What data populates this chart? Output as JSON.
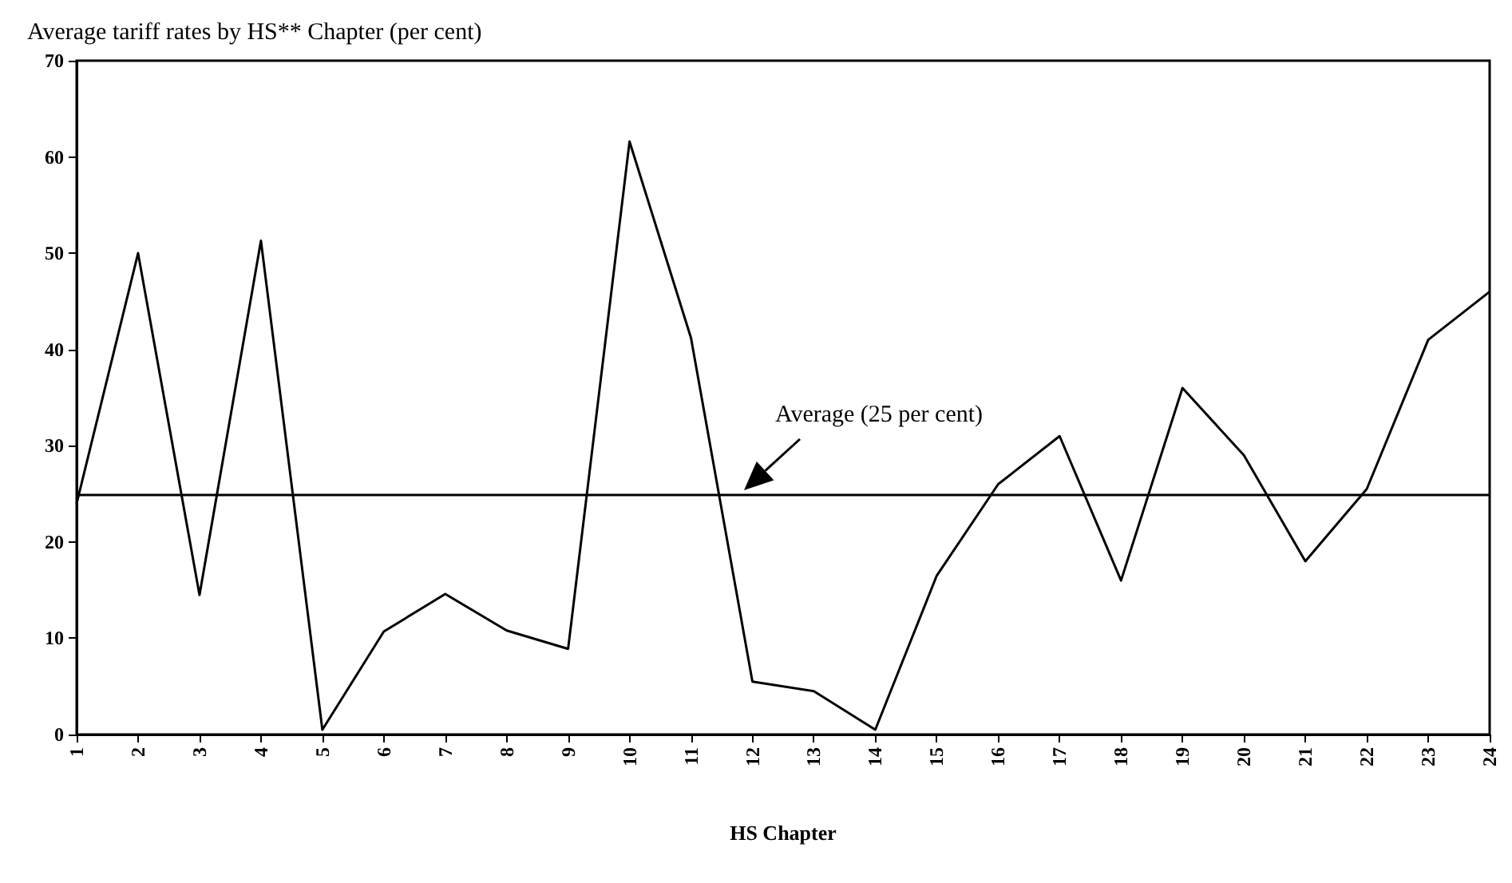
{
  "chart_data": {
    "type": "line",
    "title": "Average tariff rates by HS** Chapter (per cent)",
    "xlabel": "HS Chapter",
    "categories": [
      "1",
      "2",
      "3",
      "4",
      "5",
      "6",
      "7",
      "8",
      "9",
      "10",
      "11",
      "12",
      "13",
      "14",
      "15",
      "16",
      "17",
      "18",
      "19",
      "20",
      "21",
      "22",
      "23",
      "24"
    ],
    "series": [
      {
        "color": "#000000",
        "values": [
          24,
          50,
          14.5,
          51.3,
          0.5,
          10.7,
          14.6,
          10.8,
          8.9,
          61.6,
          41.2,
          5.5,
          4.5,
          0.5,
          16.5,
          26,
          31,
          16,
          36,
          29,
          18,
          25.5,
          41,
          46
        ]
      }
    ],
    "ylim": [
      0,
      70
    ],
    "yticks": [
      0,
      10,
      20,
      30,
      40,
      50,
      60,
      70
    ],
    "grid": false,
    "marker": "none",
    "line_style": "solid",
    "ref_lines": [
      {
        "axis": "y",
        "value": 25,
        "label": "Average (25 per cent)",
        "color": "#000000",
        "line_style": "solid"
      }
    ]
  }
}
